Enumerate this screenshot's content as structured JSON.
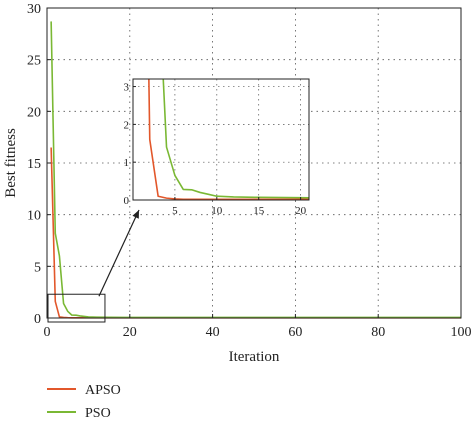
{
  "chart_data": {
    "type": "line",
    "xlabel": "Iteration",
    "ylabel": "Best fitness",
    "xlim": [
      0,
      100
    ],
    "ylim": [
      0,
      30
    ],
    "xticks": [
      "0",
      "20",
      "40",
      "60",
      "80",
      "100"
    ],
    "yticks": [
      "0",
      "5",
      "10",
      "15",
      "20",
      "25",
      "30"
    ],
    "grid": true,
    "legend_position": "bottom-left, below the plot",
    "series": [
      {
        "name": "APSO",
        "color": "#e2572b",
        "x": [
          1,
          2,
          3,
          4,
          5,
          6,
          8,
          10,
          15,
          20,
          30,
          40,
          60,
          80,
          100
        ],
        "y": [
          16.5,
          1.6,
          0.1,
          0.05,
          0.03,
          0.02,
          0.02,
          0.02,
          0.02,
          0.02,
          0.02,
          0.02,
          0.02,
          0.02,
          0.02
        ]
      },
      {
        "name": "PSO",
        "color": "#7ab834",
        "x": [
          1,
          2,
          3,
          4,
          5,
          6,
          7,
          8,
          9,
          10,
          12,
          15,
          20,
          30,
          40,
          60,
          80,
          100
        ],
        "y": [
          28.7,
          8.2,
          6.0,
          1.4,
          0.65,
          0.28,
          0.27,
          0.2,
          0.15,
          0.1,
          0.08,
          0.07,
          0.06,
          0.05,
          0.05,
          0.05,
          0.05,
          0.05
        ]
      }
    ],
    "inset": {
      "xlim": [
        0,
        21
      ],
      "ylim": [
        0,
        3.2
      ],
      "xticks": [
        "5",
        "10",
        "15",
        "20"
      ],
      "yticks": [
        "0",
        "1",
        "2",
        "3"
      ],
      "zoom_box_data": {
        "x": [
          0,
          14
        ],
        "y": [
          0,
          2.3
        ]
      }
    }
  }
}
